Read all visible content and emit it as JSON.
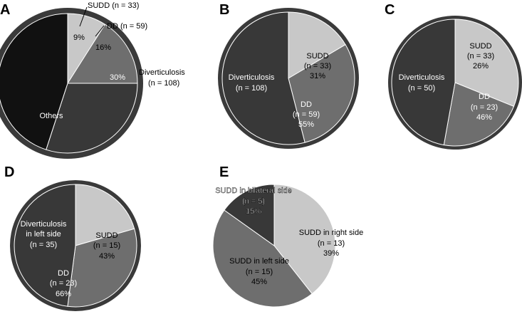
{
  "chart_data": [
    {
      "type": "pie",
      "panel": "A",
      "slices": [
        {
          "name": "SUDD",
          "n_label": "SUDD (n = 33)",
          "value": 9,
          "pct_label": "9%",
          "color": "#c8c8c8"
        },
        {
          "name": "DD",
          "n_label": "DD (n = 59)",
          "value": 16,
          "pct_label": "16%",
          "color": "#6e6e6e"
        },
        {
          "name": "Diverticulosis",
          "n_label": "Diverticulosis",
          "n_label2": "(n = 108)",
          "value": 30,
          "pct_label": "30%",
          "color": "#383838"
        },
        {
          "name": "Others",
          "n_label": "Others",
          "value": 45,
          "pct_label": "",
          "color": "#111111"
        }
      ]
    },
    {
      "type": "pie",
      "panel": "B",
      "slices": [
        {
          "name": "SUDD",
          "line1": "SUDD",
          "line2": "(n = 33)",
          "line3": "31%",
          "value": 33,
          "color": "#c8c8c8"
        },
        {
          "name": "DD",
          "line1": "DD",
          "line2": "(n = 59)",
          "line3": "55%",
          "value": 59,
          "color": "#6e6e6e"
        },
        {
          "name": "Diverticulosis",
          "line1": "Diverticulosis",
          "line2": "(n = 108)",
          "line3": "",
          "value": 108,
          "color": "#383838"
        }
      ]
    },
    {
      "type": "pie",
      "panel": "C",
      "slices": [
        {
          "name": "SUDD",
          "line1": "SUDD",
          "line2": "(n = 33)",
          "line3": "26%",
          "value": 33,
          "color": "#c8c8c8"
        },
        {
          "name": "DD",
          "line1": "DD",
          "line2": "(n = 23)",
          "line3": "46%",
          "value": 23,
          "color": "#6e6e6e"
        },
        {
          "name": "Diverticulosis",
          "line1": "Diverticulosis",
          "line2": "(n = 50)",
          "line3": "",
          "value": 50,
          "color": "#383838"
        }
      ]
    },
    {
      "type": "pie",
      "panel": "D",
      "slices": [
        {
          "name": "SUDD",
          "line1": "SUDD",
          "line2": "(n = 15)",
          "line3": "43%",
          "value": 15,
          "color": "#c8c8c8"
        },
        {
          "name": "DD",
          "line1": "DD",
          "line2": "(n = 23)",
          "line3": "66%",
          "value": 23,
          "color": "#6e6e6e"
        },
        {
          "name": "Diverticulosis in left side",
          "line1": "Diverticulosis",
          "line2": "in left side",
          "line3": "(n = 35)",
          "value": 35,
          "color": "#383838"
        }
      ]
    },
    {
      "type": "pie",
      "panel": "E",
      "slices": [
        {
          "name": "SUDD in right side",
          "line1": "SUDD in right side",
          "line2": "(n = 13)",
          "line3": "39%",
          "value": 13,
          "color": "#c8c8c8"
        },
        {
          "name": "SUDD in left side",
          "line1": "SUDD in left side",
          "line2": "(n = 15)",
          "line3": "45%",
          "value": 15,
          "color": "#6e6e6e"
        },
        {
          "name": "SUDD in bilateral side",
          "line1": "SUDD in bilateral side",
          "line2": "(n = 5)",
          "line3": "15%",
          "value": 5,
          "color": "#383838"
        }
      ]
    }
  ]
}
